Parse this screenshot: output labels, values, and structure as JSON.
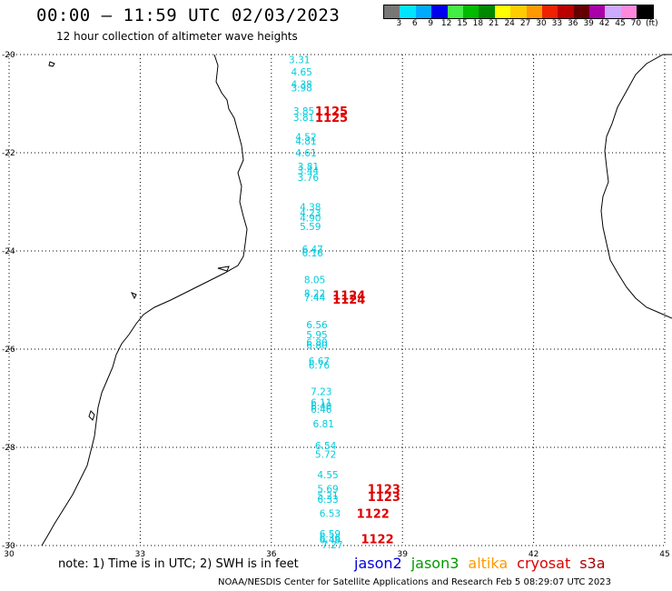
{
  "title": "00:00 – 11:59 UTC 02/03/2023",
  "subtitle": "12 hour collection of altimeter wave heights",
  "colorbar": {
    "colors": [
      "#777777",
      "#00e5ff",
      "#00aaff",
      "#0000ee",
      "#44ee44",
      "#00bb00",
      "#008800",
      "#ffff00",
      "#ffcc00",
      "#ff9900",
      "#ee2200",
      "#bb0000",
      "#660000",
      "#aa00aa",
      "#ccaaff",
      "#ff88dd",
      "#000000"
    ],
    "labels": [
      "3",
      "6",
      "9",
      "12",
      "15",
      "18",
      "21",
      "24",
      "27",
      "30",
      "33",
      "36",
      "39",
      "42",
      "45",
      "70",
      "(ft)"
    ]
  },
  "axes": {
    "x_ticks": [
      "30",
      "33",
      "36",
      "39",
      "42",
      "45"
    ],
    "y_ticks": [
      "-20",
      "-22",
      "-24",
      "-26",
      "-28",
      "-30"
    ]
  },
  "map_data": {
    "lon_range": [
      30,
      45
    ],
    "lat_range": [
      -30,
      -20
    ],
    "wave_color": "#00ccdd",
    "time_color": "#dd0000",
    "wave_heights": [
      {
        "lon": 36.4,
        "lat": -20.1,
        "text": "3.31"
      },
      {
        "lon": 36.45,
        "lat": -20.35,
        "text": "4.65"
      },
      {
        "lon": 36.45,
        "lat": -20.6,
        "text": "4.38"
      },
      {
        "lon": 36.45,
        "lat": -20.68,
        "text": "3.98"
      },
      {
        "lon": 36.5,
        "lat": -21.15,
        "text": "3.85"
      },
      {
        "lon": 36.5,
        "lat": -21.28,
        "text": "3.81"
      },
      {
        "lon": 36.55,
        "lat": -21.68,
        "text": "4.52"
      },
      {
        "lon": 36.55,
        "lat": -21.76,
        "text": "4.81"
      },
      {
        "lon": 36.55,
        "lat": -22.0,
        "text": "4.61"
      },
      {
        "lon": 36.6,
        "lat": -22.28,
        "text": "3.81"
      },
      {
        "lon": 36.6,
        "lat": -22.36,
        "text": "3.44"
      },
      {
        "lon": 36.6,
        "lat": -22.5,
        "text": "3.76"
      },
      {
        "lon": 36.65,
        "lat": -23.1,
        "text": "4.38"
      },
      {
        "lon": 36.65,
        "lat": -23.22,
        "text": "4.23"
      },
      {
        "lon": 36.65,
        "lat": -23.32,
        "text": "4.90"
      },
      {
        "lon": 36.65,
        "lat": -23.5,
        "text": "5.59"
      },
      {
        "lon": 36.7,
        "lat": -23.96,
        "text": "6.47"
      },
      {
        "lon": 36.7,
        "lat": -24.04,
        "text": "6.16"
      },
      {
        "lon": 36.75,
        "lat": -24.58,
        "text": "8.05"
      },
      {
        "lon": 36.75,
        "lat": -24.86,
        "text": "8.22"
      },
      {
        "lon": 36.75,
        "lat": -24.94,
        "text": "7.44"
      },
      {
        "lon": 36.8,
        "lat": -25.5,
        "text": "6.56"
      },
      {
        "lon": 36.8,
        "lat": -25.7,
        "text": "5.95"
      },
      {
        "lon": 36.8,
        "lat": -25.86,
        "text": "6.80"
      },
      {
        "lon": 36.8,
        "lat": -25.92,
        "text": "6.80"
      },
      {
        "lon": 36.85,
        "lat": -26.24,
        "text": "6.67"
      },
      {
        "lon": 36.85,
        "lat": -26.32,
        "text": "6.76"
      },
      {
        "lon": 36.9,
        "lat": -26.86,
        "text": "7.23"
      },
      {
        "lon": 36.9,
        "lat": -27.08,
        "text": "6.11"
      },
      {
        "lon": 36.9,
        "lat": -27.16,
        "text": "6.40"
      },
      {
        "lon": 36.9,
        "lat": -27.22,
        "text": "6.46"
      },
      {
        "lon": 36.95,
        "lat": -27.52,
        "text": "6.81"
      },
      {
        "lon": 37.0,
        "lat": -27.96,
        "text": "6.54"
      },
      {
        "lon": 37.0,
        "lat": -28.14,
        "text": "5.72"
      },
      {
        "lon": 37.05,
        "lat": -28.56,
        "text": "4.55"
      },
      {
        "lon": 37.05,
        "lat": -28.84,
        "text": "5.69"
      },
      {
        "lon": 37.05,
        "lat": -28.98,
        "text": "5.21"
      },
      {
        "lon": 37.05,
        "lat": -29.06,
        "text": "6.33"
      },
      {
        "lon": 37.1,
        "lat": -29.34,
        "text": "6.53"
      },
      {
        "lon": 37.1,
        "lat": -29.76,
        "text": "6.59"
      },
      {
        "lon": 37.1,
        "lat": -29.84,
        "text": "6.36"
      },
      {
        "lon": 37.1,
        "lat": -29.88,
        "text": "6.48"
      },
      {
        "lon": 37.15,
        "lat": -29.98,
        "text": "7.27"
      }
    ],
    "times": [
      {
        "lon": 37.0,
        "lat": -21.15,
        "text": "1125"
      },
      {
        "lon": 37.0,
        "lat": -21.28,
        "text": "1125"
      },
      {
        "lon": 37.4,
        "lat": -24.9,
        "text": "1124"
      },
      {
        "lon": 37.4,
        "lat": -24.98,
        "text": "1124"
      },
      {
        "lon": 38.2,
        "lat": -28.84,
        "text": "1123"
      },
      {
        "lon": 38.2,
        "lat": -29.0,
        "text": "1123"
      },
      {
        "lon": 37.95,
        "lat": -29.34,
        "text": "1122"
      },
      {
        "lon": 38.05,
        "lat": -29.86,
        "text": "1122"
      }
    ]
  },
  "note": "note: 1) Time is in UTC; 2) SWH is in feet",
  "legend": [
    {
      "name": "jason2",
      "color": "#0000dd"
    },
    {
      "name": "jason3",
      "color": "#009900"
    },
    {
      "name": "altika",
      "color": "#ff9900"
    },
    {
      "name": "cryosat",
      "color": "#dd0000"
    },
    {
      "name": "s3a",
      "color": "#aa0000"
    }
  ],
  "credit": "NOAA/NESDIS Center for Satellite Applications and Research   Feb  5 08:29:07 UTC 2023"
}
